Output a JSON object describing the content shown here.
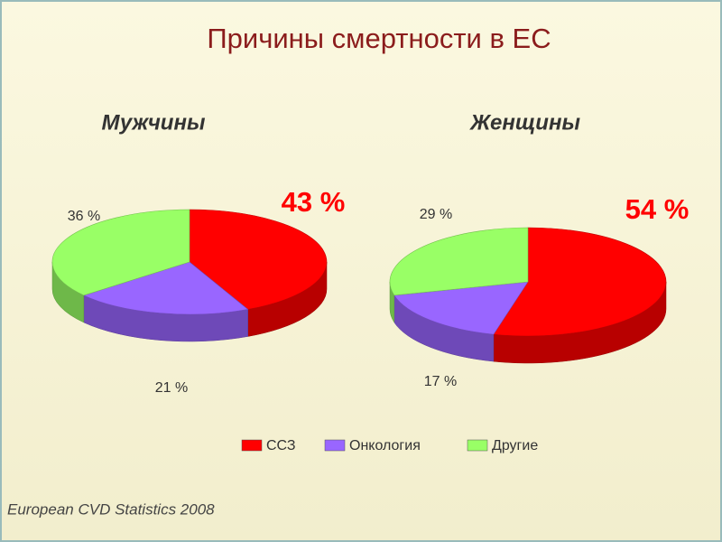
{
  "title": "Причины смертности в ЕС",
  "source": "European CVD Statistics 2008",
  "chart_data": [
    {
      "type": "pie",
      "title": "Мужчины",
      "categories": [
        "ССЗ",
        "Онкология",
        "Другие"
      ],
      "values": [
        43,
        21,
        36
      ],
      "value_labels": [
        "43 %",
        "21 %",
        "36 %"
      ],
      "colors": [
        "#ff0000",
        "#9966ff",
        "#99ff66"
      ]
    },
    {
      "type": "pie",
      "title": "Женщины",
      "categories": [
        "ССЗ",
        "Онкология",
        "Другие"
      ],
      "values": [
        54,
        17,
        29
      ],
      "value_labels": [
        "54 %",
        "17 %",
        "29 %"
      ],
      "colors": [
        "#ff0000",
        "#9966ff",
        "#99ff66"
      ]
    }
  ]
}
